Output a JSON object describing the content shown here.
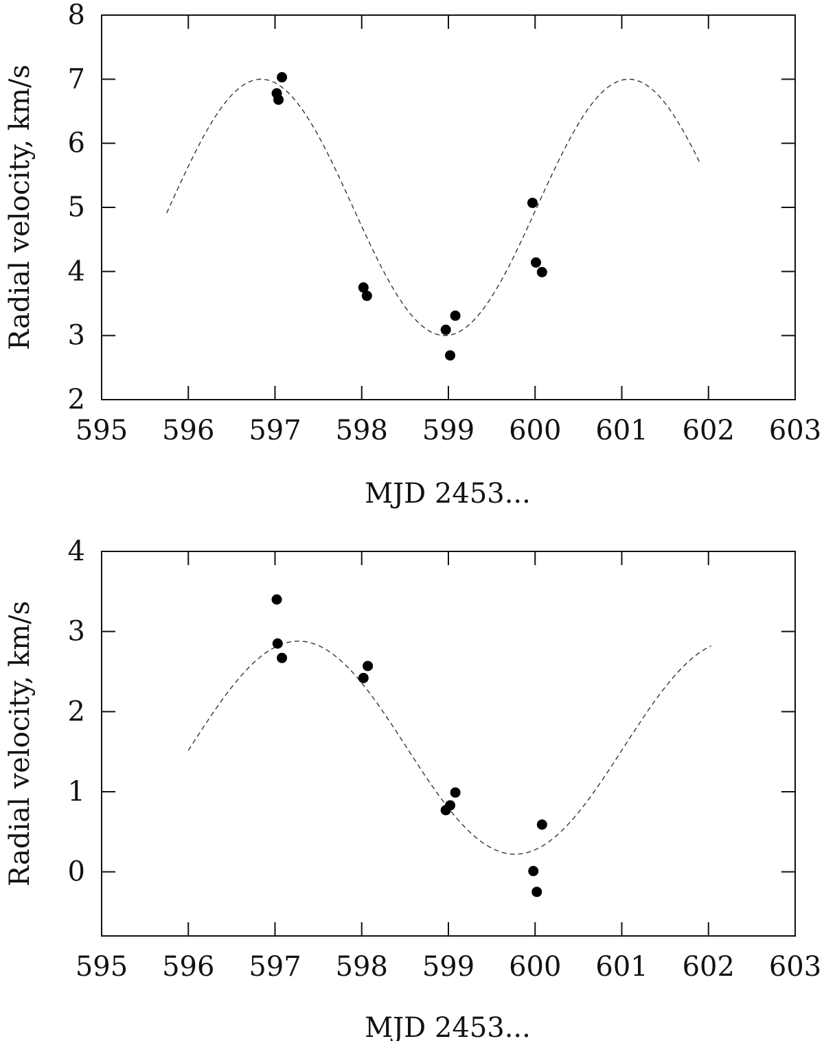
{
  "chart_data": [
    {
      "type": "scatter",
      "title": "",
      "xlabel": "MJD 2453...",
      "ylabel": "Radial velocity, km/s",
      "xlim": [
        595,
        603
      ],
      "ylim": [
        2,
        8
      ],
      "xticks": [
        "595",
        "596",
        "597",
        "598",
        "599",
        "600",
        "601",
        "602",
        "603"
      ],
      "yticks": [
        "2",
        "3",
        "4",
        "5",
        "6",
        "7",
        "8"
      ],
      "grid": false,
      "series": [
        {
          "name": "observations",
          "style": "filled-circle",
          "points": [
            {
              "x": 597.02,
              "y": 6.78
            },
            {
              "x": 597.04,
              "y": 6.68
            },
            {
              "x": 597.08,
              "y": 7.03
            },
            {
              "x": 598.02,
              "y": 3.75
            },
            {
              "x": 598.06,
              "y": 3.62
            },
            {
              "x": 598.97,
              "y": 3.09
            },
            {
              "x": 599.02,
              "y": 2.69
            },
            {
              "x": 599.08,
              "y": 3.31
            },
            {
              "x": 599.97,
              "y": 5.07
            },
            {
              "x": 600.01,
              "y": 4.14
            },
            {
              "x": 600.08,
              "y": 3.99
            }
          ]
        },
        {
          "name": "fit",
          "style": "dashed-line",
          "model": "sine",
          "params": {
            "mean": 5.0,
            "amplitude": 2.0,
            "period": 4.24,
            "x_peak": 596.84
          },
          "x_range": [
            595.75,
            601.9
          ]
        }
      ]
    },
    {
      "type": "scatter",
      "title": "",
      "xlabel": "MJD 2453...",
      "ylabel": "Radial velocity, km/s",
      "xlim": [
        595,
        603
      ],
      "ylim": [
        -0.8,
        4
      ],
      "xticks": [
        "595",
        "596",
        "597",
        "598",
        "599",
        "600",
        "601",
        "602",
        "603"
      ],
      "yticks": [
        "0",
        "1",
        "2",
        "3",
        "4"
      ],
      "grid": false,
      "series": [
        {
          "name": "observations",
          "style": "filled-circle",
          "points": [
            {
              "x": 597.02,
              "y": 3.4
            },
            {
              "x": 597.03,
              "y": 2.85
            },
            {
              "x": 597.08,
              "y": 2.67
            },
            {
              "x": 598.02,
              "y": 2.42
            },
            {
              "x": 598.07,
              "y": 2.57
            },
            {
              "x": 598.97,
              "y": 0.77
            },
            {
              "x": 599.02,
              "y": 0.83
            },
            {
              "x": 599.08,
              "y": 0.99
            },
            {
              "x": 599.98,
              "y": 0.01
            },
            {
              "x": 600.02,
              "y": -0.25
            },
            {
              "x": 600.08,
              "y": 0.59
            }
          ]
        },
        {
          "name": "fit",
          "style": "dashed-line",
          "model": "sine",
          "params": {
            "mean": 1.55,
            "amplitude": 1.33,
            "period": 5.0,
            "x_peak": 597.27
          },
          "x_range": [
            596.0,
            602.03
          ]
        }
      ]
    }
  ]
}
